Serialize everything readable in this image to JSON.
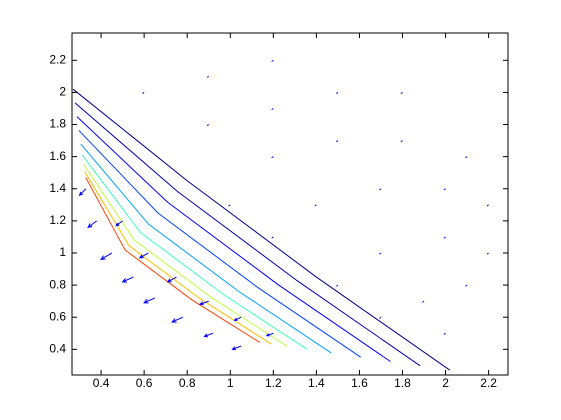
{
  "chart_data": {
    "type": "contour_quiver",
    "xlim": [
      0.265,
      2.29
    ],
    "ylim": [
      0.24,
      2.37
    ],
    "xticks": [
      0.4,
      0.6,
      0.8,
      1,
      1.2,
      1.4,
      1.6,
      1.8,
      2,
      2.2
    ],
    "yticks": [
      0.4,
      0.6,
      0.8,
      1,
      1.2,
      1.4,
      1.6,
      1.8,
      2,
      2.2
    ],
    "contours": [
      {
        "color": "#00008f",
        "x": [
          0.27,
          0.8,
          1.4,
          2.02
        ],
        "y": [
          2.02,
          1.45,
          0.85,
          0.27
        ]
      },
      {
        "color": "#0000b0",
        "x": [
          0.279,
          0.755,
          1.31,
          1.882
        ],
        "y": [
          1.935,
          1.383,
          0.828,
          0.297
        ]
      },
      {
        "color": "#0000ff",
        "x": [
          0.288,
          0.71,
          1.22,
          1.744
        ],
        "y": [
          1.849,
          1.315,
          0.805,
          0.324
        ]
      },
      {
        "color": "#0040ff",
        "x": [
          0.297,
          0.665,
          1.13,
          1.606
        ],
        "y": [
          1.763,
          1.248,
          0.783,
          0.351
        ]
      },
      {
        "color": "#00a0ff",
        "x": [
          0.306,
          0.62,
          1.04,
          1.468
        ],
        "y": [
          1.678,
          1.18,
          0.76,
          0.378
        ]
      },
      {
        "color": "#40ffc0",
        "x": [
          0.313,
          0.584,
          0.968,
          1.357
        ],
        "y": [
          1.609,
          1.126,
          0.742,
          0.4
        ]
      },
      {
        "color": "#c0ff40",
        "x": [
          0.319,
          0.554,
          0.908,
          1.265
        ],
        "y": [
          1.552,
          1.081,
          0.727,
          0.418
        ]
      },
      {
        "color": "#ffc000",
        "x": [
          0.324,
          0.53,
          0.86,
          1.192
        ],
        "y": [
          1.507,
          1.045,
          0.715,
          0.432
        ]
      },
      {
        "color": "#ff4000",
        "x": [
          0.328,
          0.512,
          0.824,
          1.137
        ],
        "y": [
          1.472,
          1.018,
          0.706,
          0.443
        ]
      }
    ],
    "quiver": {
      "color": "#0000ff",
      "x": [
        0.33,
        0.38,
        0.45,
        0.55,
        0.65,
        0.78,
        0.92,
        1.05,
        0.5,
        0.62,
        0.75,
        0.9,
        1.05,
        1.2,
        0.6,
        0.9,
        1.2,
        0.9,
        1.2,
        1.5,
        1.8,
        1.2,
        1.5,
        1.8,
        2.1,
        1.4,
        1.7,
        2.0,
        2.2,
        1.7,
        2.0,
        2.2,
        1.9,
        2.1,
        2.0,
        1.0,
        1.2,
        1.5,
        1.7
      ],
      "y": [
        1.4,
        1.2,
        1.0,
        0.85,
        0.72,
        0.6,
        0.5,
        0.42,
        1.2,
        1.0,
        0.85,
        0.7,
        0.6,
        0.5,
        2.0,
        2.1,
        2.2,
        1.8,
        1.9,
        2.0,
        2.0,
        1.6,
        1.7,
        1.7,
        1.6,
        1.3,
        1.4,
        1.4,
        1.3,
        1.0,
        1.1,
        1.0,
        0.7,
        0.8,
        0.5,
        1.3,
        1.1,
        0.8,
        0.6
      ],
      "u": [
        -0.03,
        -0.04,
        -0.05,
        -0.05,
        -0.05,
        -0.05,
        -0.04,
        -0.04,
        -0.03,
        -0.04,
        -0.04,
        -0.04,
        -0.03,
        -0.03,
        -0.005,
        -0.005,
        -0.005,
        -0.005,
        -0.005,
        -0.005,
        -0.005,
        -0.005,
        -0.005,
        -0.005,
        -0.005,
        -0.005,
        -0.005,
        -0.005,
        -0.005,
        -0.005,
        -0.005,
        -0.005,
        -0.005,
        -0.005,
        -0.005,
        -0.005,
        -0.005,
        -0.005,
        -0.005
      ],
      "v": [
        -0.04,
        -0.04,
        -0.04,
        -0.03,
        -0.03,
        -0.03,
        -0.02,
        -0.02,
        -0.03,
        -0.03,
        -0.03,
        -0.02,
        -0.02,
        -0.015,
        -0.005,
        -0.005,
        -0.005,
        -0.005,
        -0.005,
        -0.005,
        -0.005,
        -0.005,
        -0.005,
        -0.005,
        -0.005,
        -0.005,
        -0.005,
        -0.005,
        -0.005,
        -0.005,
        -0.005,
        -0.005,
        -0.005,
        -0.005,
        -0.005,
        -0.005,
        -0.005,
        -0.005,
        -0.005
      ]
    }
  }
}
